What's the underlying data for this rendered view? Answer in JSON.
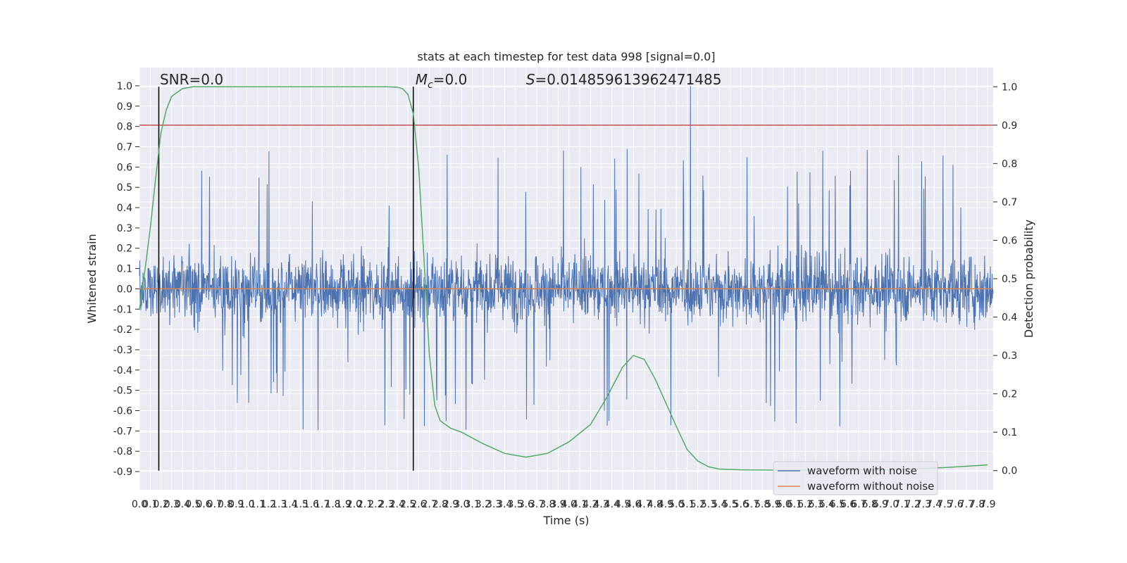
{
  "chart_data": {
    "type": "line",
    "title": "stats at each timestep for test data 998 [signal=0.0]",
    "xlabel": "Time (s)",
    "ylabel": "Whitened strain",
    "y2label": "Detection probability",
    "xlim": [
      0.0,
      7.95
    ],
    "ylim": [
      -0.99,
      1.09
    ],
    "y2lim": [
      -0.05,
      1.05
    ],
    "x_ticks": [
      0.0,
      0.1,
      0.2,
      0.3,
      0.4,
      0.5,
      0.6,
      0.7,
      0.8,
      0.9,
      1.0,
      1.1,
      1.2,
      1.3,
      1.4,
      1.5,
      1.6,
      1.7,
      1.8,
      1.9,
      2.0,
      2.1,
      2.2,
      2.3,
      2.4,
      2.5,
      2.6,
      2.7,
      2.8,
      2.9,
      3.0,
      3.1,
      3.2,
      3.3,
      3.4,
      3.5,
      3.6,
      3.7,
      3.8,
      3.9,
      4.0,
      4.1,
      4.2,
      4.3,
      4.4,
      4.5,
      4.6,
      4.7,
      4.8,
      4.9,
      5.0,
      5.1,
      5.2,
      5.3,
      5.4,
      5.5,
      5.6,
      5.7,
      5.8,
      5.9,
      6.0,
      6.1,
      6.2,
      6.3,
      6.4,
      6.5,
      6.6,
      6.7,
      6.8,
      6.9,
      7.0,
      7.1,
      7.2,
      7.3,
      7.4,
      7.5,
      7.6,
      7.7,
      7.8,
      7.9
    ],
    "y_ticks": [
      1.0,
      0.9,
      0.8,
      0.7,
      0.6,
      0.5,
      0.4,
      0.3,
      0.2,
      0.1,
      0.0,
      -0.1,
      -0.2,
      -0.3,
      -0.4,
      -0.5,
      -0.6,
      -0.7,
      -0.8,
      -0.9
    ],
    "y2_ticks": [
      1.0,
      0.9,
      0.8,
      0.7,
      0.6,
      0.5,
      0.4,
      0.3,
      0.2,
      0.1,
      0.0
    ],
    "grid": true,
    "legend_position": "bottom-right",
    "series": [
      {
        "name": "waveform with noise",
        "color": "#4c72b0",
        "axis": "left",
        "description_values": "dense noise in approx [-0.9, 1.0], max 1.0 near t=5.13"
      },
      {
        "name": "waveform without noise",
        "color": "#dd8452",
        "axis": "left",
        "x": [
          0.0,
          7.95
        ],
        "values": [
          0.0,
          0.0
        ]
      },
      {
        "color": "#55a868",
        "axis": "right",
        "x": [
          0.0,
          0.05,
          0.1,
          0.15,
          0.2,
          0.25,
          0.3,
          0.4,
          0.5,
          0.6,
          1.0,
          1.5,
          2.0,
          2.3,
          2.4,
          2.45,
          2.5,
          2.55,
          2.6,
          2.65,
          2.7,
          2.75,
          2.8,
          2.9,
          3.0,
          3.2,
          3.4,
          3.6,
          3.8,
          4.0,
          4.2,
          4.35,
          4.5,
          4.6,
          4.7,
          4.8,
          5.0,
          5.1,
          5.2,
          5.3,
          5.4,
          5.6,
          6.0,
          7.0,
          7.5,
          7.9
        ],
        "values": [
          0.42,
          0.52,
          0.63,
          0.76,
          0.88,
          0.94,
          0.975,
          0.995,
          1.0,
          1.0,
          1.0,
          1.0,
          1.0,
          1.0,
          0.999,
          0.995,
          0.98,
          0.93,
          0.79,
          0.55,
          0.3,
          0.17,
          0.13,
          0.11,
          0.1,
          0.07,
          0.045,
          0.035,
          0.045,
          0.075,
          0.12,
          0.19,
          0.27,
          0.3,
          0.29,
          0.24,
          0.115,
          0.055,
          0.025,
          0.01,
          0.004,
          0.002,
          0.001,
          0.002,
          0.008,
          0.015
        ]
      }
    ],
    "hlines": [
      {
        "y2": 0.9,
        "color": "#c44e52"
      }
    ],
    "vlines": [
      {
        "x": 0.18,
        "y2_range": [
          0.0,
          1.0
        ],
        "color": "#000000"
      },
      {
        "x": 2.55,
        "y2_range": [
          0.0,
          1.0
        ],
        "color": "#000000"
      }
    ],
    "annotations": [
      {
        "text": "SNR=0.0",
        "x": 0.19
      },
      {
        "text_main": "M",
        "text_sub": "c",
        "text_rest": "=0.0",
        "x": 2.57
      },
      {
        "text_main": "S",
        "text_rest": "=0.014859613962471485",
        "x": 3.6
      }
    ]
  }
}
